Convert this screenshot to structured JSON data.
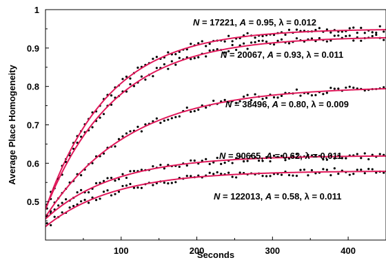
{
  "chart_data": {
    "type": "scatter",
    "xlabel": "Seconds",
    "ylabel": "Average Place Homogeneity",
    "xlim": [
      0,
      450
    ],
    "ylim": [
      0.4,
      1.0
    ],
    "x_ticks": [
      "100",
      "200",
      "300",
      "400"
    ],
    "x_tick_values": [
      100,
      200,
      300,
      400
    ],
    "y_ticks": [
      "0.5",
      "0.6",
      "0.7",
      "0.8",
      "0.9",
      "1"
    ],
    "y_tick_values": [
      0.5,
      0.6,
      0.7,
      0.8,
      0.9,
      1.0
    ],
    "grid": false,
    "colors": {
      "fit": "#e0185a",
      "points": "#000000"
    },
    "series": [
      {
        "label": {
          "N": "17221",
          "A": "0.95",
          "lambda": "0.012"
        },
        "N": 17221,
        "A": 0.95,
        "lambda": 0.012,
        "y0": 0.48
      },
      {
        "label": {
          "N": "20067",
          "A": "0.93",
          "lambda": "0.011"
        },
        "N": 20067,
        "A": 0.93,
        "lambda": 0.011,
        "y0": 0.48
      },
      {
        "label": {
          "N": "38496",
          "A": "0.80",
          "lambda": "0.009"
        },
        "N": 38496,
        "A": 0.8,
        "lambda": 0.009,
        "y0": 0.46
      },
      {
        "label": {
          "N": "90665",
          "A": "0.62",
          "lambda": "0.011"
        },
        "N": 90665,
        "A": 0.62,
        "lambda": 0.011,
        "y0": 0.455
      },
      {
        "label": {
          "N": "122013",
          "A": "0.58",
          "lambda": "0.011"
        },
        "N": 122013,
        "A": 0.58,
        "lambda": 0.011,
        "y0": 0.435
      }
    ]
  }
}
